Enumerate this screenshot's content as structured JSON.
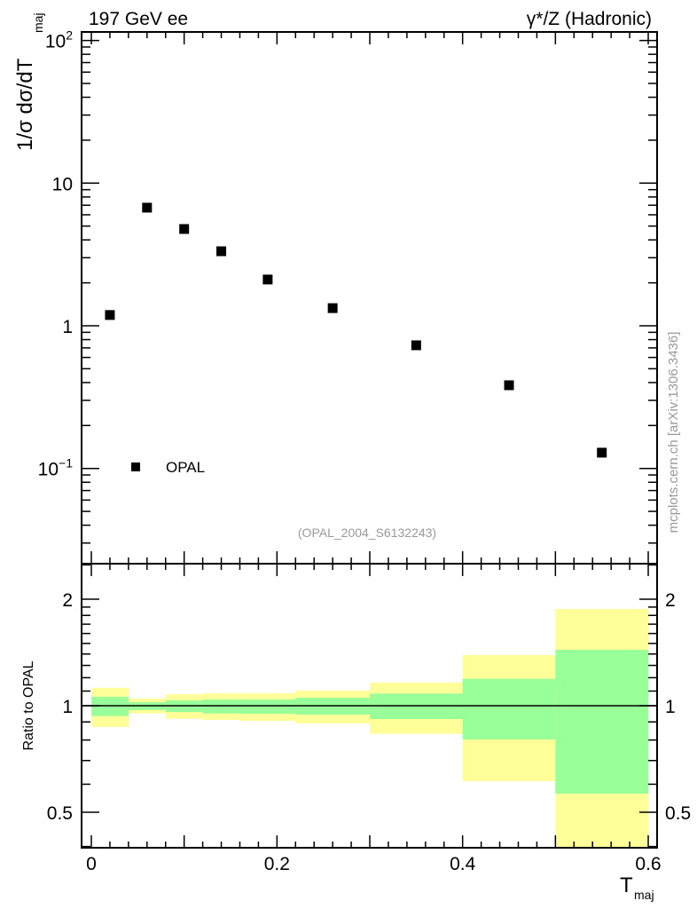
{
  "chart_data": [
    {
      "type": "scatter",
      "title_left": "197 GeV ee",
      "title_right": "γ*/Z (Hadronic)",
      "ylabel": "1/σ dσ/dT",
      "ylabel_sub": "maj",
      "yscale": "log",
      "ylim": [
        0.0216,
        115
      ],
      "yticks": [
        {
          "value": 100,
          "base": "10",
          "exp": "2"
        },
        {
          "value": 10,
          "base": "10",
          "exp": ""
        },
        {
          "value": 1,
          "base": "1",
          "exp": ""
        },
        {
          "value": 0.1,
          "base": "10",
          "exp": "−1"
        }
      ],
      "xlim": [
        -0.01,
        0.61
      ],
      "legend": {
        "label": "OPAL",
        "placement": "bottom-left"
      },
      "analysis_label": "(OPAL_2004_S6132243)",
      "side_label": "mcplots.cern.ch [arXiv:1306.3436]",
      "series": [
        {
          "name": "OPAL",
          "x": [
            0.02,
            0.06,
            0.1,
            0.14,
            0.19,
            0.26,
            0.35,
            0.45,
            0.55
          ],
          "y": [
            1.19,
            6.73,
            4.77,
            3.33,
            2.11,
            1.33,
            0.73,
            0.383,
            0.129
          ]
        }
      ]
    },
    {
      "type": "area",
      "ylabel": "Ratio to OPAL",
      "yscale": "log",
      "ylim": [
        0.397,
        2.52
      ],
      "yticks": [
        {
          "value": 2,
          "label": "2"
        },
        {
          "value": 1,
          "label": "1"
        },
        {
          "value": 0.5,
          "label": "0.5"
        }
      ],
      "xlabel": "T",
      "xlabel_sub": "maj",
      "xticks": [
        {
          "value": 0,
          "label": "0"
        },
        {
          "value": 0.2,
          "label": "0.2"
        },
        {
          "value": 0.4,
          "label": "0.4"
        },
        {
          "value": 0.6,
          "label": "0.6"
        }
      ],
      "bin_edges": [
        0,
        0.04,
        0.08,
        0.12,
        0.16,
        0.22,
        0.3,
        0.4,
        0.5,
        0.6
      ],
      "band_outer": {
        "color": "#ffff99",
        "low": [
          0.871,
          0.951,
          0.918,
          0.912,
          0.906,
          0.891,
          0.833,
          0.612,
          0.35
        ],
        "high": [
          1.124,
          1.047,
          1.078,
          1.084,
          1.084,
          1.103,
          1.162,
          1.39,
          1.876
        ]
      },
      "band_inner": {
        "color": "#99ff99",
        "low": [
          0.935,
          0.972,
          0.96,
          0.951,
          0.949,
          0.944,
          0.917,
          0.803,
          0.564
        ],
        "high": [
          1.06,
          1.023,
          1.035,
          1.041,
          1.041,
          1.053,
          1.082,
          1.191,
          1.439
        ]
      },
      "reference_line": 1
    }
  ]
}
